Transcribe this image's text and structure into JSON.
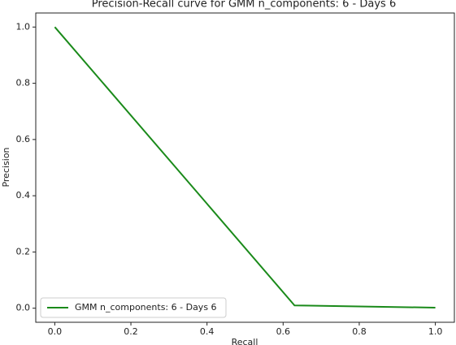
{
  "chart_data": {
    "type": "line",
    "title": "Precision-Recall curve for GMM n_components: 6 - Days 6",
    "x_label": "Recall",
    "y_label": "Precision",
    "x": [
      0,
      0.63,
      1.0
    ],
    "series": [
      {
        "name": "GMM n_components: 6 - Days 6",
        "color": "#1a8a1a",
        "values": [
          1.0,
          0.01,
          0.002
        ]
      }
    ],
    "xlim": [
      -0.05,
      1.05
    ],
    "xticks": [
      {
        "value": 0,
        "label": "0.0"
      },
      0.2,
      0.4,
      0.6,
      0.8,
      {
        "value": 1,
        "label": "1.0"
      }
    ],
    "ylim": [
      -0.05,
      1.05
    ],
    "yticks": [
      {
        "value": 0,
        "label": "0.0"
      },
      0.2,
      0.4,
      0.6,
      0.8,
      {
        "value": 1,
        "label": "1.0"
      }
    ],
    "legend": "lower left",
    "grid": false
  }
}
